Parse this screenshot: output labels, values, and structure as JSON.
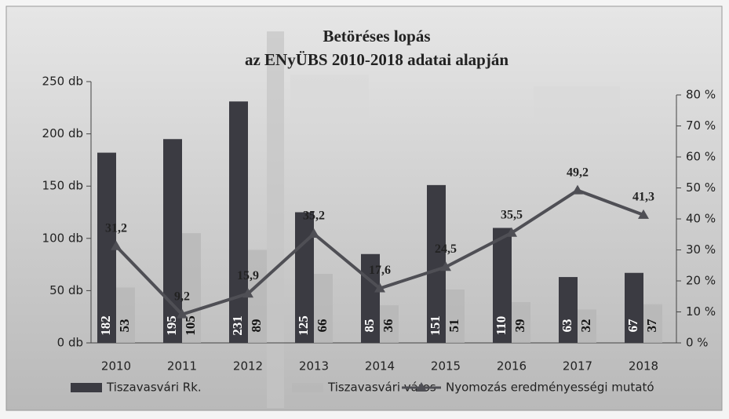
{
  "chart_data": {
    "type": "bar",
    "title": "Betöréses lopás",
    "subtitle": "az ENyÜBS 2010-2018 adatai alapján",
    "categories": [
      "2010",
      "2011",
      "2012",
      "2013",
      "2014",
      "2015",
      "2016",
      "2017",
      "2018"
    ],
    "series": [
      {
        "name": "Tiszavasvári Rk.",
        "color": "#3b3b42",
        "values": [
          182,
          195,
          231,
          125,
          85,
          151,
          110,
          63,
          67
        ]
      },
      {
        "name": "Tiszavasvári város",
        "color": "#b5b5b5",
        "values": [
          53,
          105,
          89,
          66,
          36,
          51,
          39,
          32,
          37
        ]
      },
      {
        "name": "Nyomozás eredményességi mutató",
        "color": "#4f4f55",
        "type": "line",
        "axis": "y2",
        "values": [
          31.2,
          9.2,
          15.9,
          35.2,
          17.6,
          24.5,
          35.5,
          49.2,
          41.3
        ],
        "value_labels": [
          "31,2",
          "9,2",
          "15,9",
          "35,2",
          "17,6",
          "24,5",
          "35,5",
          "49,2",
          "41,3"
        ]
      }
    ],
    "ylim": [
      0,
      250
    ],
    "yticks": [
      {
        "value": 0,
        "label": "0 db"
      },
      {
        "value": 50,
        "label": "50 db"
      },
      {
        "value": 100,
        "label": "100 db"
      },
      {
        "value": 150,
        "label": "150 db"
      },
      {
        "value": 200,
        "label": "200 db"
      },
      {
        "value": 250,
        "label": "250 db"
      }
    ],
    "y2lim": [
      0,
      80
    ],
    "y2ticks": [
      {
        "value": 0,
        "label": "0 %"
      },
      {
        "value": 10,
        "label": "10 %"
      },
      {
        "value": 20,
        "label": "20 %"
      },
      {
        "value": 30,
        "label": "30 %"
      },
      {
        "value": 40,
        "label": "40 %"
      },
      {
        "value": 50,
        "label": "50 %"
      },
      {
        "value": 60,
        "label": "60 %"
      },
      {
        "value": 70,
        "label": "70 %"
      },
      {
        "value": 80,
        "label": "80 %"
      }
    ],
    "legend": "bottom"
  }
}
